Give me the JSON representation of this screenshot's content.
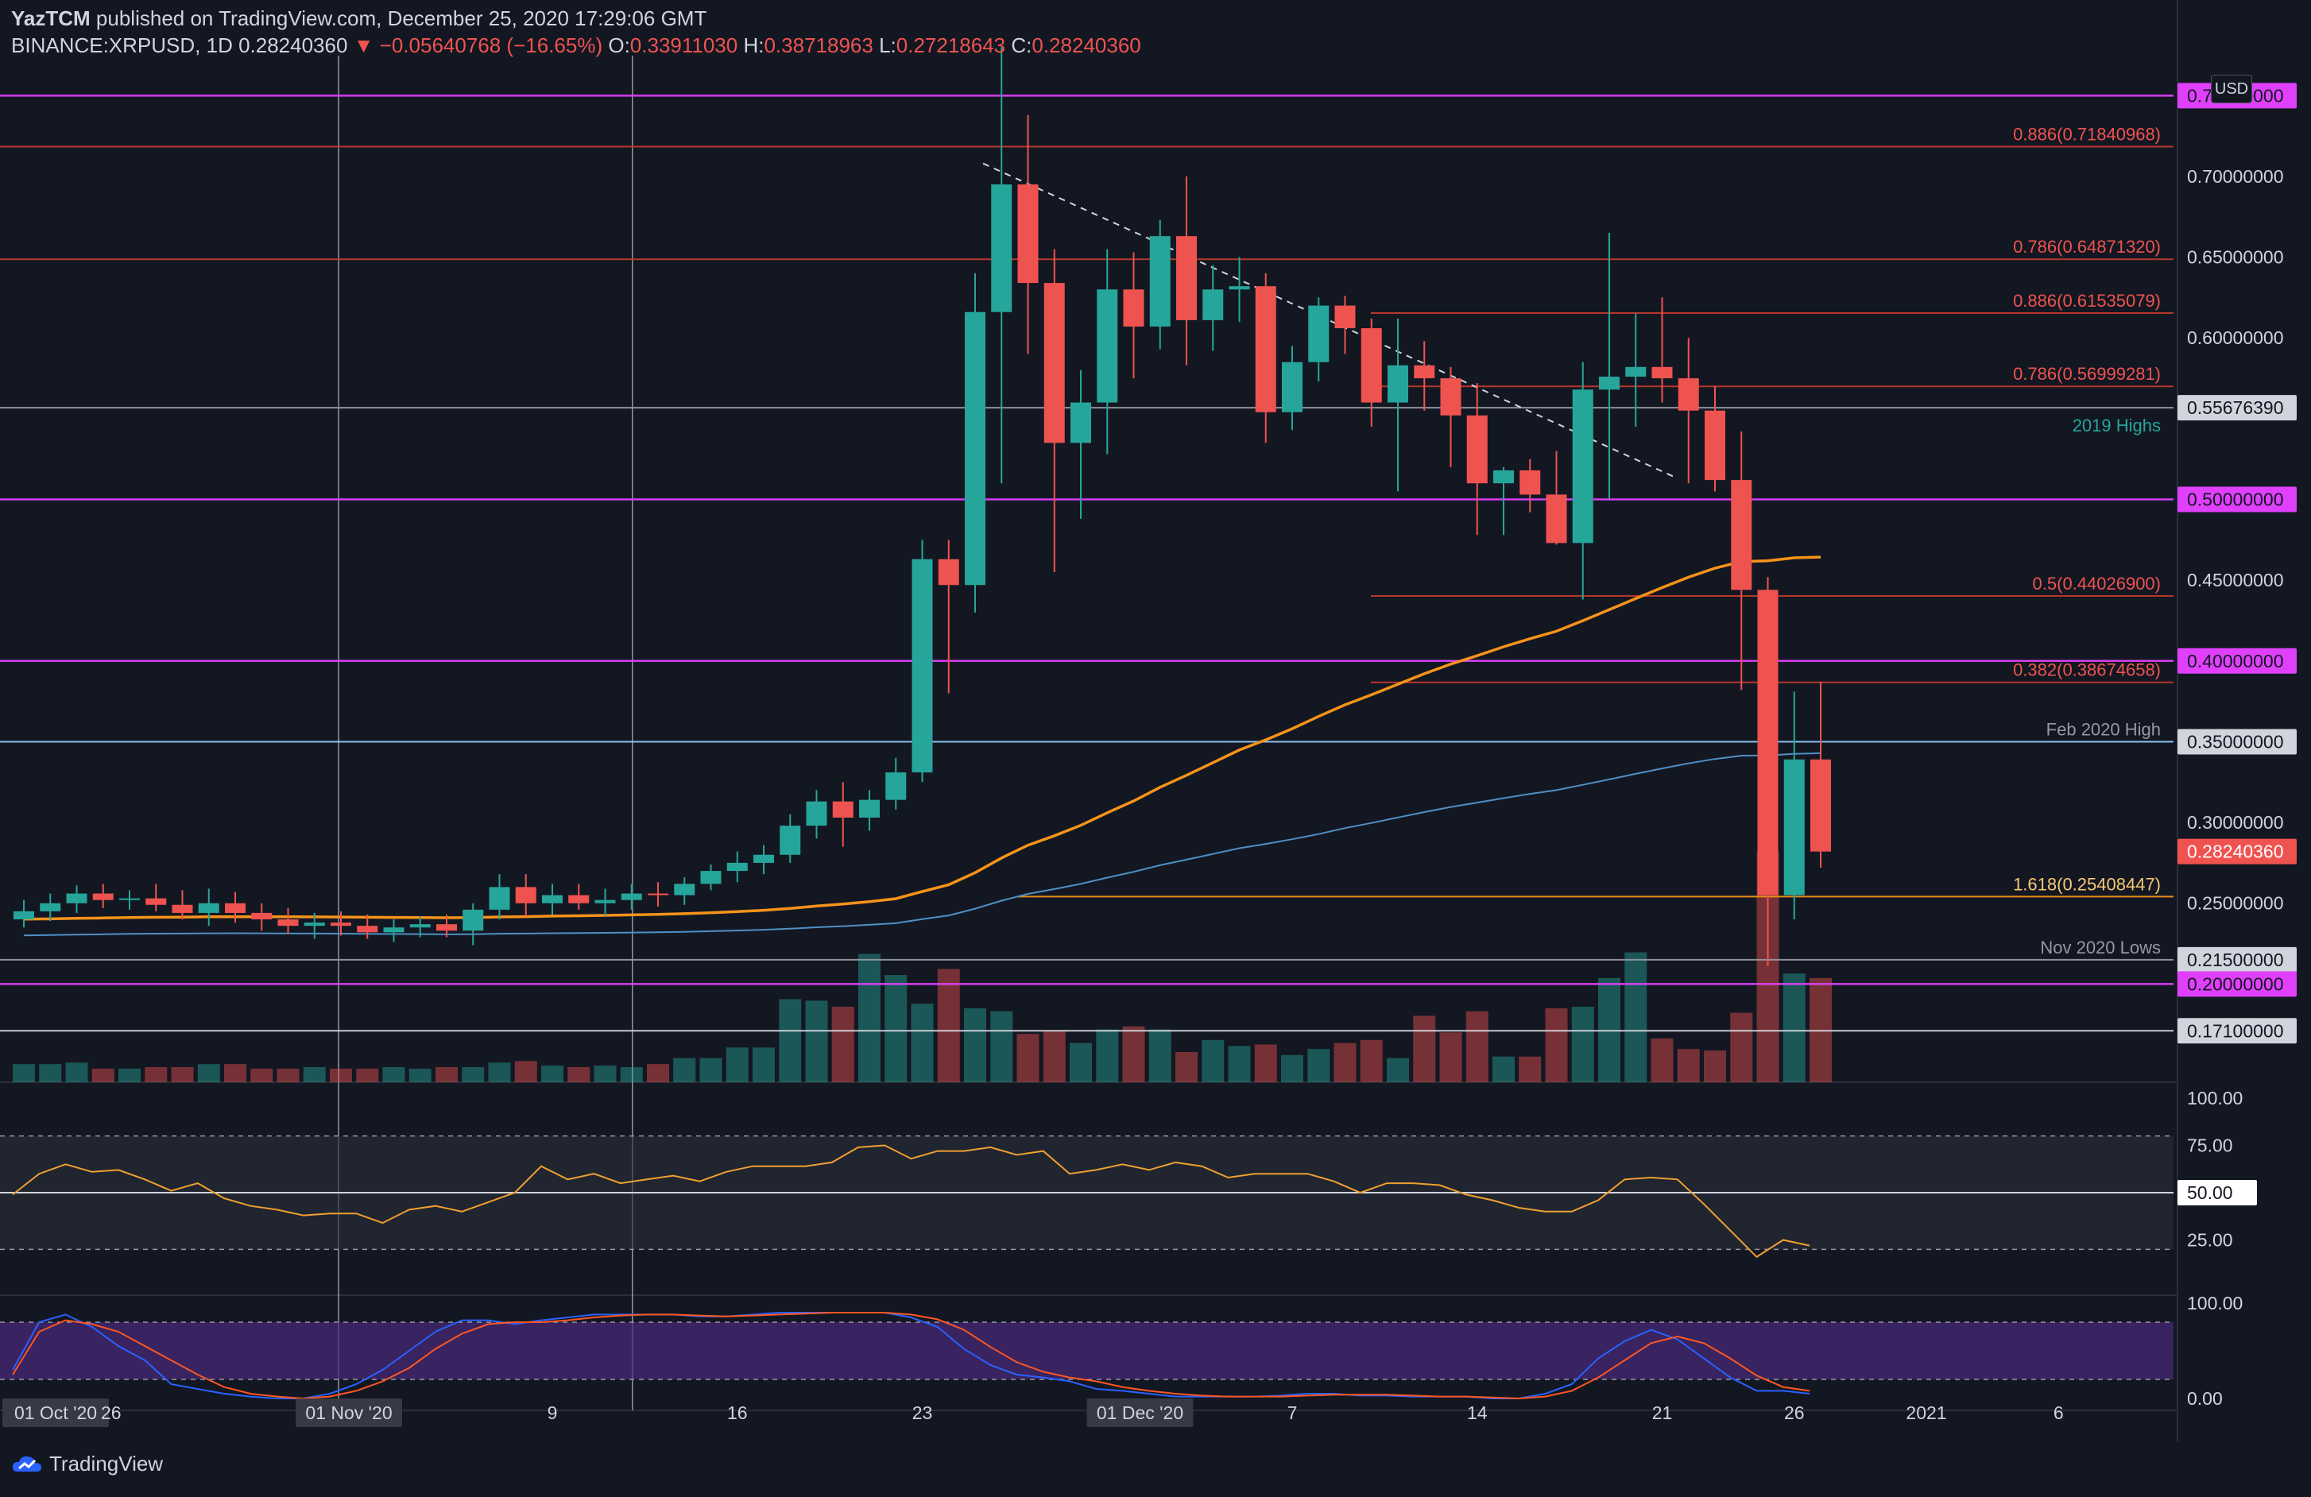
{
  "header": {
    "publisher": "YazTCM",
    "published_text": "published on TradingView.com, December 25, 2020 17:29:06 GMT",
    "symbol": "BINANCE:XRPUSD, 1D",
    "last": "0.28240360",
    "change": "−0.05640768 (−16.65%)",
    "open_label": "O:",
    "open": "0.33911030",
    "high_label": "H:",
    "high": "0.38718963",
    "low_label": "L:",
    "low": "0.27218643",
    "close_label": "C:",
    "close": "0.28240360"
  },
  "currency": "USD",
  "brand": "TradingView",
  "colors": {
    "up": "#26a69a",
    "down": "#ef5350",
    "ema": "#f7931a",
    "sma": "#4f8fc4",
    "magenta": "#e040fb",
    "fib": "#c0392b",
    "rsi": "#f0a030",
    "stoch_k": "#2962ff",
    "stoch_d": "#ff5722"
  },
  "chart_data": {
    "type": "candlestick",
    "timeframe": "1D",
    "x_tick_labels": [
      "01 Oct '20",
      "26",
      "01 Nov '20",
      "9",
      "16",
      "23",
      "01 Dec '20",
      "7",
      "14",
      "21",
      "26",
      "2021",
      "6"
    ],
    "y_tick_labels": [
      "0.70000000",
      "0.65000000",
      "0.60000000",
      "0.45000000",
      "0.30000000",
      "0.25000000"
    ],
    "ylim": [
      0.15,
      0.76
    ],
    "horizontal_levels": [
      {
        "price": 0.75,
        "label": "0.75000000",
        "color": "#e040fb",
        "text": ""
      },
      {
        "price": 0.71840968,
        "label": "",
        "color": "#c0392b",
        "text": "0.886(0.71840968)"
      },
      {
        "price": 0.6487132,
        "label": "",
        "color": "#c0392b",
        "text": "0.786(0.64871320)"
      },
      {
        "price": 0.61535079,
        "label": "",
        "color": "#c0392b",
        "text": "0.886(0.61535079)"
      },
      {
        "price": 0.56999281,
        "label": "",
        "color": "#c0392b",
        "text": "0.786(0.56999281)"
      },
      {
        "price": 0.5567639,
        "label": "0.55676390",
        "color": "#9598a1",
        "text": "2019 Highs"
      },
      {
        "price": 0.5,
        "label": "0.50000000",
        "color": "#e040fb",
        "text": ""
      },
      {
        "price": 0.440269,
        "label": "",
        "color": "#c0392b",
        "text": "0.5(0.44026900)"
      },
      {
        "price": 0.4,
        "label": "0.40000000",
        "color": "#e040fb",
        "text": ""
      },
      {
        "price": 0.38674658,
        "label": "",
        "color": "#c0392b",
        "text": "0.382(0.38674658)"
      },
      {
        "price": 0.35,
        "label": "0.35000000",
        "color": "#90caf9",
        "text": "Feb 2020 High"
      },
      {
        "price": 0.25408447,
        "label": "",
        "color": "#f7931a",
        "text": "1.618(0.25408447)"
      },
      {
        "price": 0.215,
        "label": "0.21500000",
        "color": "#9598a1",
        "text": "Nov 2020 Lows"
      },
      {
        "price": 0.2,
        "label": "0.20000000",
        "color": "#e040fb",
        "text": ""
      },
      {
        "price": 0.171,
        "label": "0.17100000",
        "color": "#d1d4dc",
        "text": ""
      }
    ],
    "last_price_label": "0.28240360",
    "candles": [
      {
        "o": 0.24,
        "h": 0.252,
        "l": 0.235,
        "c": 0.245
      },
      {
        "o": 0.245,
        "h": 0.256,
        "l": 0.239,
        "c": 0.25
      },
      {
        "o": 0.25,
        "h": 0.261,
        "l": 0.244,
        "c": 0.256
      },
      {
        "o": 0.256,
        "h": 0.262,
        "l": 0.247,
        "c": 0.252
      },
      {
        "o": 0.252,
        "h": 0.258,
        "l": 0.246,
        "c": 0.253
      },
      {
        "o": 0.253,
        "h": 0.262,
        "l": 0.245,
        "c": 0.249
      },
      {
        "o": 0.249,
        "h": 0.258,
        "l": 0.24,
        "c": 0.244
      },
      {
        "o": 0.244,
        "h": 0.259,
        "l": 0.236,
        "c": 0.25
      },
      {
        "o": 0.25,
        "h": 0.257,
        "l": 0.238,
        "c": 0.244
      },
      {
        "o": 0.244,
        "h": 0.25,
        "l": 0.233,
        "c": 0.24
      },
      {
        "o": 0.24,
        "h": 0.247,
        "l": 0.231,
        "c": 0.236
      },
      {
        "o": 0.236,
        "h": 0.244,
        "l": 0.228,
        "c": 0.238
      },
      {
        "o": 0.238,
        "h": 0.245,
        "l": 0.23,
        "c": 0.236
      },
      {
        "o": 0.236,
        "h": 0.243,
        "l": 0.228,
        "c": 0.232
      },
      {
        "o": 0.232,
        "h": 0.24,
        "l": 0.226,
        "c": 0.235
      },
      {
        "o": 0.235,
        "h": 0.242,
        "l": 0.229,
        "c": 0.237
      },
      {
        "o": 0.237,
        "h": 0.243,
        "l": 0.229,
        "c": 0.233
      },
      {
        "o": 0.233,
        "h": 0.25,
        "l": 0.224,
        "c": 0.246
      },
      {
        "o": 0.246,
        "h": 0.268,
        "l": 0.24,
        "c": 0.26
      },
      {
        "o": 0.26,
        "h": 0.268,
        "l": 0.242,
        "c": 0.25
      },
      {
        "o": 0.25,
        "h": 0.262,
        "l": 0.243,
        "c": 0.255
      },
      {
        "o": 0.255,
        "h": 0.262,
        "l": 0.246,
        "c": 0.25
      },
      {
        "o": 0.25,
        "h": 0.259,
        "l": 0.242,
        "c": 0.252
      },
      {
        "o": 0.252,
        "h": 0.262,
        "l": 0.246,
        "c": 0.256
      },
      {
        "o": 0.256,
        "h": 0.263,
        "l": 0.248,
        "c": 0.255
      },
      {
        "o": 0.255,
        "h": 0.266,
        "l": 0.249,
        "c": 0.262
      },
      {
        "o": 0.262,
        "h": 0.274,
        "l": 0.258,
        "c": 0.27
      },
      {
        "o": 0.27,
        "h": 0.282,
        "l": 0.263,
        "c": 0.275
      },
      {
        "o": 0.275,
        "h": 0.286,
        "l": 0.268,
        "c": 0.28
      },
      {
        "o": 0.28,
        "h": 0.305,
        "l": 0.275,
        "c": 0.298
      },
      {
        "o": 0.298,
        "h": 0.32,
        "l": 0.29,
        "c": 0.313
      },
      {
        "o": 0.313,
        "h": 0.325,
        "l": 0.285,
        "c": 0.303
      },
      {
        "o": 0.303,
        "h": 0.32,
        "l": 0.295,
        "c": 0.314
      },
      {
        "o": 0.314,
        "h": 0.34,
        "l": 0.308,
        "c": 0.331
      },
      {
        "o": 0.331,
        "h": 0.475,
        "l": 0.325,
        "c": 0.463
      },
      {
        "o": 0.463,
        "h": 0.475,
        "l": 0.38,
        "c": 0.447
      },
      {
        "o": 0.447,
        "h": 0.64,
        "l": 0.43,
        "c": 0.616
      },
      {
        "o": 0.616,
        "h": 0.78,
        "l": 0.51,
        "c": 0.695
      },
      {
        "o": 0.695,
        "h": 0.738,
        "l": 0.59,
        "c": 0.634
      },
      {
        "o": 0.634,
        "h": 0.655,
        "l": 0.455,
        "c": 0.535
      },
      {
        "o": 0.535,
        "h": 0.58,
        "l": 0.488,
        "c": 0.56
      },
      {
        "o": 0.56,
        "h": 0.655,
        "l": 0.528,
        "c": 0.63
      },
      {
        "o": 0.63,
        "h": 0.653,
        "l": 0.575,
        "c": 0.607
      },
      {
        "o": 0.607,
        "h": 0.673,
        "l": 0.593,
        "c": 0.663
      },
      {
        "o": 0.663,
        "h": 0.7,
        "l": 0.583,
        "c": 0.611
      },
      {
        "o": 0.611,
        "h": 0.645,
        "l": 0.592,
        "c": 0.63
      },
      {
        "o": 0.63,
        "h": 0.65,
        "l": 0.61,
        "c": 0.632
      },
      {
        "o": 0.632,
        "h": 0.64,
        "l": 0.535,
        "c": 0.554
      },
      {
        "o": 0.554,
        "h": 0.595,
        "l": 0.543,
        "c": 0.585
      },
      {
        "o": 0.585,
        "h": 0.625,
        "l": 0.573,
        "c": 0.62
      },
      {
        "o": 0.62,
        "h": 0.626,
        "l": 0.59,
        "c": 0.606
      },
      {
        "o": 0.606,
        "h": 0.612,
        "l": 0.545,
        "c": 0.56
      },
      {
        "o": 0.56,
        "h": 0.612,
        "l": 0.505,
        "c": 0.583
      },
      {
        "o": 0.583,
        "h": 0.598,
        "l": 0.555,
        "c": 0.575
      },
      {
        "o": 0.575,
        "h": 0.582,
        "l": 0.52,
        "c": 0.552
      },
      {
        "o": 0.552,
        "h": 0.572,
        "l": 0.478,
        "c": 0.51
      },
      {
        "o": 0.51,
        "h": 0.52,
        "l": 0.478,
        "c": 0.518
      },
      {
        "o": 0.518,
        "h": 0.525,
        "l": 0.492,
        "c": 0.503
      },
      {
        "o": 0.503,
        "h": 0.53,
        "l": 0.472,
        "c": 0.473
      },
      {
        "o": 0.473,
        "h": 0.585,
        "l": 0.438,
        "c": 0.568
      },
      {
        "o": 0.568,
        "h": 0.665,
        "l": 0.5,
        "c": 0.576
      },
      {
        "o": 0.576,
        "h": 0.615,
        "l": 0.545,
        "c": 0.582
      },
      {
        "o": 0.582,
        "h": 0.625,
        "l": 0.56,
        "c": 0.575
      },
      {
        "o": 0.575,
        "h": 0.6,
        "l": 0.51,
        "c": 0.555
      },
      {
        "o": 0.555,
        "h": 0.57,
        "l": 0.505,
        "c": 0.512
      },
      {
        "o": 0.512,
        "h": 0.542,
        "l": 0.382,
        "c": 0.444
      },
      {
        "o": 0.444,
        "h": 0.452,
        "l": 0.211,
        "c": 0.255
      },
      {
        "o": 0.255,
        "h": 0.381,
        "l": 0.24,
        "c": 0.339
      },
      {
        "o": 0.339,
        "h": 0.387,
        "l": 0.272,
        "c": 0.282
      }
    ],
    "volumes": [
      0.12,
      0.12,
      0.13,
      0.09,
      0.09,
      0.1,
      0.1,
      0.12,
      0.12,
      0.09,
      0.09,
      0.1,
      0.09,
      0.09,
      0.1,
      0.09,
      0.1,
      0.1,
      0.13,
      0.14,
      0.11,
      0.1,
      0.11,
      0.1,
      0.12,
      0.16,
      0.16,
      0.23,
      0.23,
      0.55,
      0.54,
      0.5,
      0.85,
      0.71,
      0.52,
      0.75,
      0.49,
      0.47,
      0.32,
      0.34,
      0.26,
      0.35,
      0.37,
      0.35,
      0.2,
      0.28,
      0.24,
      0.25,
      0.18,
      0.22,
      0.26,
      0.28,
      0.16,
      0.44,
      0.33,
      0.47,
      0.17,
      0.17,
      0.49,
      0.5,
      0.69,
      0.86,
      0.29,
      0.22,
      0.21,
      0.46,
      1.53,
      0.72,
      0.69
    ],
    "indicators": {
      "rsi": {
        "ylim": [
          0,
          100
        ],
        "y_tick_labels": [
          "100.00",
          "75.00",
          "50.00",
          "25.00"
        ],
        "bands": [
          80,
          20
        ],
        "mid": 50,
        "values": [
          49,
          60,
          65,
          61,
          62,
          57,
          51,
          55,
          47,
          43,
          41,
          38,
          39,
          39,
          34,
          41,
          43,
          40,
          45,
          50,
          64,
          57,
          60,
          55,
          57,
          59,
          56,
          61,
          64,
          64,
          64,
          66,
          74,
          75,
          68,
          72,
          72,
          74,
          70,
          72,
          60,
          62,
          65,
          62,
          66,
          64,
          58,
          60,
          60,
          60,
          56,
          50,
          55,
          55,
          54,
          49,
          46,
          42,
          40,
          40,
          46,
          57,
          58,
          57,
          44,
          30,
          16,
          25,
          22
        ]
      },
      "stoch_rsi": {
        "ylim": [
          0,
          100
        ],
        "y_tick_labels": [
          "100.00",
          "0.00"
        ],
        "bands": [
          80,
          20
        ],
        "k": [
          30,
          80,
          88,
          75,
          55,
          40,
          15,
          10,
          5,
          2,
          0,
          0,
          5,
          15,
          30,
          50,
          70,
          82,
          82,
          78,
          82,
          85,
          88,
          88,
          88,
          88,
          86,
          86,
          88,
          90,
          90,
          90,
          90,
          90,
          85,
          75,
          52,
          35,
          25,
          22,
          18,
          10,
          8,
          5,
          2,
          2,
          2,
          2,
          3,
          5,
          5,
          3,
          3,
          2,
          2,
          2,
          0,
          0,
          5,
          15,
          42,
          60,
          72,
          62,
          42,
          22,
          8,
          8,
          5
        ],
        "d": [
          25,
          70,
          82,
          78,
          70,
          55,
          40,
          25,
          12,
          5,
          2,
          0,
          2,
          8,
          18,
          32,
          52,
          68,
          78,
          80,
          80,
          82,
          85,
          87,
          88,
          88,
          87,
          86,
          87,
          88,
          89,
          90,
          90,
          90,
          88,
          83,
          72,
          54,
          38,
          28,
          22,
          18,
          12,
          8,
          5,
          3,
          2,
          2,
          2,
          3,
          4,
          4,
          4,
          3,
          2,
          2,
          1,
          0,
          2,
          8,
          22,
          40,
          58,
          65,
          58,
          42,
          24,
          12,
          8
        ]
      }
    }
  }
}
